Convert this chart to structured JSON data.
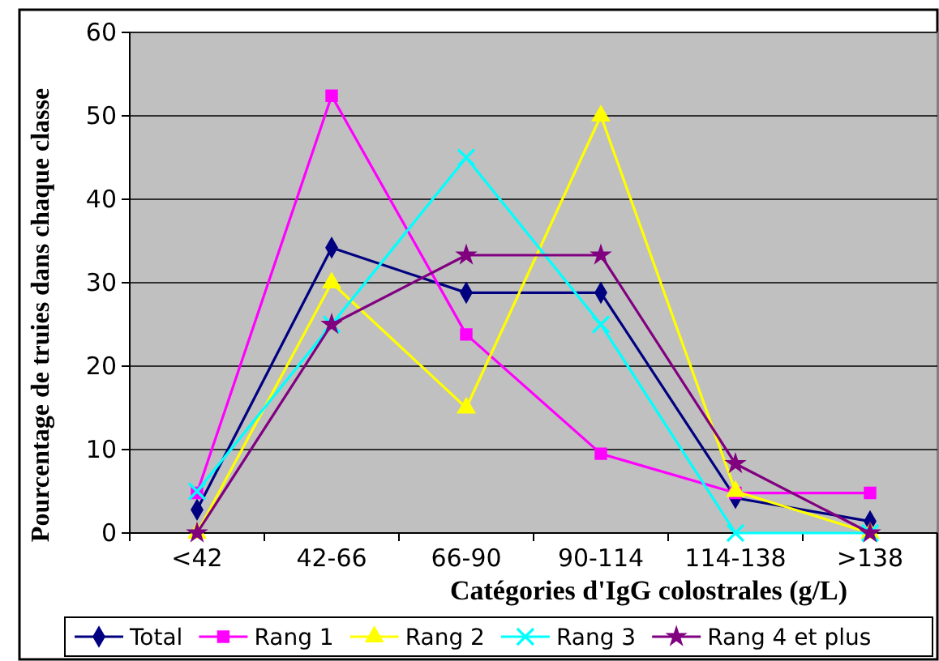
{
  "chart_data": {
    "type": "line",
    "xlabel": "Catégories d'IgG colostrales (g/L)",
    "ylabel": "Pourcentage de truies dans chaque classe",
    "categories": [
      "<42",
      "42-66",
      "66-90",
      "90-114",
      "114-138",
      ">138"
    ],
    "ylim": [
      0,
      60
    ],
    "yticks": [
      0,
      10,
      20,
      30,
      40,
      50,
      60
    ],
    "grid": "y",
    "legend": "bottom",
    "series": [
      {
        "name": "Total",
        "color": "#000080",
        "marker": "diamond",
        "values": [
          2.8,
          34.2,
          28.8,
          28.8,
          4.2,
          1.4
        ]
      },
      {
        "name": "Rang 1",
        "color": "#ff00ff",
        "marker": "square",
        "values": [
          4.8,
          52.4,
          23.8,
          9.5,
          4.8,
          4.8
        ]
      },
      {
        "name": "Rang 2",
        "color": "#ffff00",
        "marker": "triangle",
        "values": [
          0,
          30,
          15,
          50,
          5,
          0
        ]
      },
      {
        "name": "Rang 3",
        "color": "#00ffff",
        "marker": "cross",
        "values": [
          5,
          25,
          45,
          25,
          0,
          0
        ]
      },
      {
        "name": "Rang 4 et plus",
        "color": "#800080",
        "marker": "star",
        "values": [
          0,
          25,
          33.3,
          33.3,
          8.3,
          0
        ]
      }
    ]
  }
}
